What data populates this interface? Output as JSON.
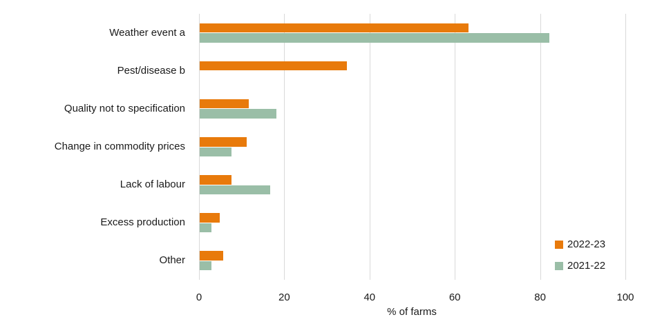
{
  "chart_data": {
    "type": "bar",
    "orientation": "horizontal",
    "title": "",
    "xlabel": "% of farms",
    "xlim": [
      0,
      100
    ],
    "xticks": [
      0,
      20,
      40,
      60,
      80,
      100
    ],
    "grid": "vertical",
    "legend_position": "bottom-right-inside",
    "categories": [
      "Weather event a",
      "Pest/disease b",
      "Quality not to specification",
      "Change in commodity prices",
      "Lack of labour",
      "Excess production",
      "Other"
    ],
    "series": [
      {
        "name": "2022-23",
        "color": "#e87a0b",
        "values": [
          63,
          34.5,
          11.5,
          11,
          7.5,
          4.7,
          5.5
        ]
      },
      {
        "name": "2021-22",
        "color": "#9abea7",
        "values": [
          82,
          null,
          18,
          7.5,
          16.5,
          2.7,
          2.7
        ]
      }
    ]
  },
  "colors": {
    "gridline": "#d9d9d9",
    "text": "#1a1a1a",
    "background": "#ffffff"
  }
}
